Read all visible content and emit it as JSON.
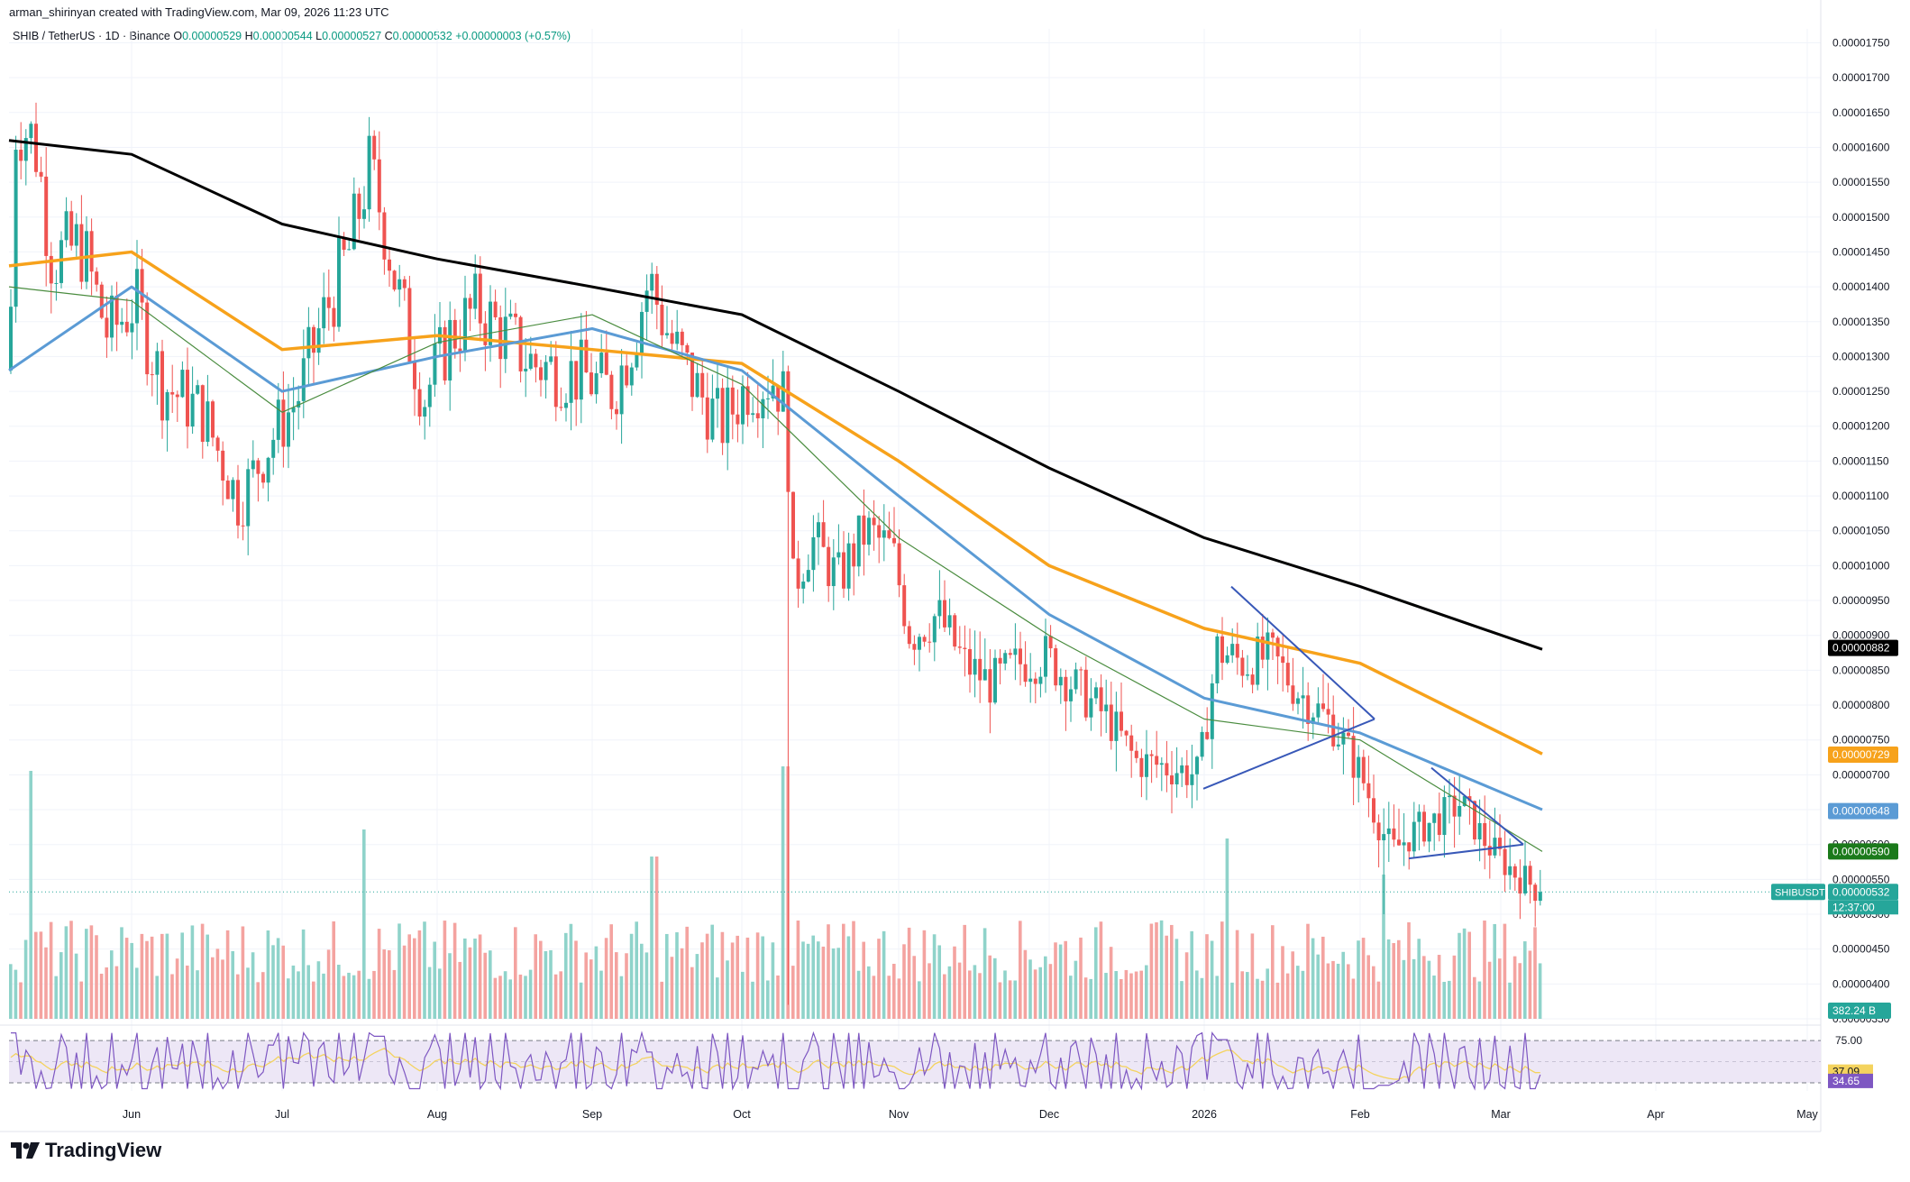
{
  "header": {
    "author_line": "arman_shirinyan created with TradingView.com, Mar 09, 2026 11:23 UTC",
    "symbol_label": "SHIB / TetherUS · 1D · Binance",
    "ohlc": {
      "o_label": "O",
      "o": "0.00000529",
      "h_label": "H",
      "h": "0.00000544",
      "l_label": "L",
      "l": "0.00000527",
      "c_label": "C",
      "c": "0.00000532",
      "change": "+0.00000003 (+0.57%)"
    }
  },
  "brand": {
    "name": "TradingView"
  },
  "colors": {
    "up": "#26a69a",
    "down": "#ef5350",
    "up_volume": "#8fd3ca",
    "down_volume": "#f4a3a0",
    "ma_200": "#000000",
    "ma_100": "#f7a21b",
    "ma_50": "#5b9bd5",
    "ma_20": "#4a8c3f",
    "trendline": "#3858b8",
    "rsi": "#7e57c2",
    "rsi_ma": "#f4d35e",
    "rsi_band": "#ede7f6"
  },
  "chart_data": {
    "type": "candlestick",
    "symbol": "SHIBUSDT",
    "timeframe": "1D",
    "y_axis_ticks": [
      "0.00001750",
      "0.00001700",
      "0.00001650",
      "0.00001600",
      "0.00001550",
      "0.00001500",
      "0.00001450",
      "0.00001400",
      "0.00001350",
      "0.00001300",
      "0.00001250",
      "0.00001200",
      "0.00001150",
      "0.00001100",
      "0.00001050",
      "0.00001000",
      "0.00000950",
      "0.00000900",
      "0.00000850",
      "0.00000800",
      "0.00000750",
      "0.00000700",
      "0.00000650",
      "0.00000600",
      "0.00000550",
      "0.00000500",
      "0.00000450",
      "0.00000400",
      "0.00000350"
    ],
    "ylim": [
      3.5e-06,
      1.77e-05
    ],
    "x_axis_ticks": [
      "Jun",
      "Jul",
      "Aug",
      "Sep",
      "Oct",
      "Nov",
      "Dec",
      "2026",
      "Feb",
      "Mar",
      "Apr",
      "May"
    ],
    "price_scale_labels": [
      {
        "value": "0.00000882",
        "series": "MA 200"
      },
      {
        "value": "0.00000729",
        "series": "MA 100"
      },
      {
        "value": "0.00000648",
        "series": "MA 50"
      },
      {
        "value": "0.00000590",
        "series": "MA 20"
      },
      {
        "value": "0.00000532",
        "series": "SHIBUSDT"
      }
    ],
    "symbol_tag": "SHIBUSDT",
    "countdown": "12:37:00",
    "volume_label": "382.24 B",
    "moving_averages": [
      {
        "name": "MA 200",
        "points": [
          [
            "May 10",
            1.61e-05
          ],
          [
            "Jun 1",
            1.59e-05
          ],
          [
            "Jul 1",
            1.49e-05
          ],
          [
            "Aug 1",
            1.44e-05
          ],
          [
            "Sep 1",
            1.4e-05
          ],
          [
            "Oct 1",
            1.36e-05
          ],
          [
            "Nov 1",
            1.25e-05
          ],
          [
            "Dec 1",
            1.14e-05
          ],
          [
            "Jan 1",
            1.04e-05
          ],
          [
            "Feb 1",
            9.7e-06
          ],
          [
            "Mar 9",
            8.8e-06
          ]
        ]
      },
      {
        "name": "MA 100",
        "points": [
          [
            "May 10",
            1.43e-05
          ],
          [
            "Jun 1",
            1.45e-05
          ],
          [
            "Jul 1",
            1.31e-05
          ],
          [
            "Aug 1",
            1.33e-05
          ],
          [
            "Sep 1",
            1.31e-05
          ],
          [
            "Oct 1",
            1.29e-05
          ],
          [
            "Nov 1",
            1.15e-05
          ],
          [
            "Dec 1",
            1e-05
          ],
          [
            "Jan 1",
            9.1e-06
          ],
          [
            "Feb 1",
            8.6e-06
          ],
          [
            "Mar 9",
            7.3e-06
          ]
        ]
      },
      {
        "name": "MA 50",
        "points": [
          [
            "May 10",
            1.28e-05
          ],
          [
            "Jun 1",
            1.4e-05
          ],
          [
            "Jul 1",
            1.25e-05
          ],
          [
            "Aug 1",
            1.3e-05
          ],
          [
            "Sep 1",
            1.34e-05
          ],
          [
            "Oct 1",
            1.28e-05
          ],
          [
            "Nov 1",
            1.1e-05
          ],
          [
            "Dec 1",
            9.3e-06
          ],
          [
            "Jan 1",
            8.1e-06
          ],
          [
            "Feb 1",
            7.6e-06
          ],
          [
            "Mar 9",
            6.5e-06
          ]
        ]
      },
      {
        "name": "MA 20",
        "points": [
          [
            "May 10",
            1.4e-05
          ],
          [
            "Jun 1",
            1.38e-05
          ],
          [
            "Jul 1",
            1.22e-05
          ],
          [
            "Aug 1",
            1.32e-05
          ],
          [
            "Sep 1",
            1.36e-05
          ],
          [
            "Oct 1",
            1.26e-05
          ],
          [
            "Nov 1",
            1.04e-05
          ],
          [
            "Dec 1",
            9e-06
          ],
          [
            "Jan 1",
            7.8e-06
          ],
          [
            "Feb 1",
            7.5e-06
          ],
          [
            "Mar 9",
            5.9e-06
          ]
        ]
      }
    ],
    "last_close": 5.32e-06,
    "rsi": {
      "levels": [
        "75.00",
        "25.00"
      ],
      "upper": 75,
      "lower": 25,
      "value": "34.65",
      "ma_value": "37.09"
    }
  }
}
